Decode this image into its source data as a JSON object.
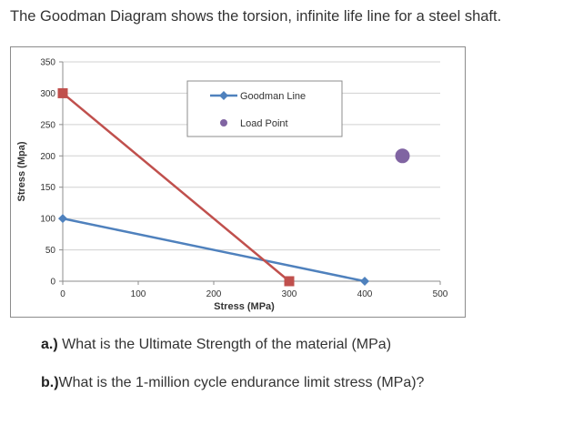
{
  "title": "The Goodman Diagram shows the torsion, infinite life line for a steel shaft.",
  "chart_data": {
    "type": "scatter",
    "xlabel": "Stress (MPa)",
    "ylabel": "Stress (Mpa)",
    "xlim": [
      0,
      500
    ],
    "ylim": [
      0,
      350
    ],
    "x_ticks": [
      0,
      100,
      200,
      300,
      400,
      500
    ],
    "y_ticks": [
      0,
      50,
      100,
      150,
      200,
      250,
      300,
      350
    ],
    "grid": "horizontal",
    "legend_placement": "top-center",
    "series": [
      {
        "name": "Goodman Line",
        "type": "line",
        "marker": "diamond",
        "color": "#4f81bd",
        "points": [
          [
            0,
            100
          ],
          [
            400,
            0
          ]
        ]
      },
      {
        "name": "",
        "type": "line",
        "marker": "square",
        "color": "#c0504d",
        "points": [
          [
            0,
            300
          ],
          [
            300,
            0
          ]
        ]
      },
      {
        "name": "Load Point",
        "type": "scatter",
        "marker": "circle",
        "color": "#8064a2",
        "points": [
          [
            450,
            200
          ]
        ]
      }
    ]
  },
  "questions": [
    {
      "lead": "a.)",
      "text": " What is the Ultimate Strength of the material (MPa)"
    },
    {
      "lead": "b.)",
      "text": "What is the 1-million cycle endurance limit stress (MPa)?"
    }
  ]
}
